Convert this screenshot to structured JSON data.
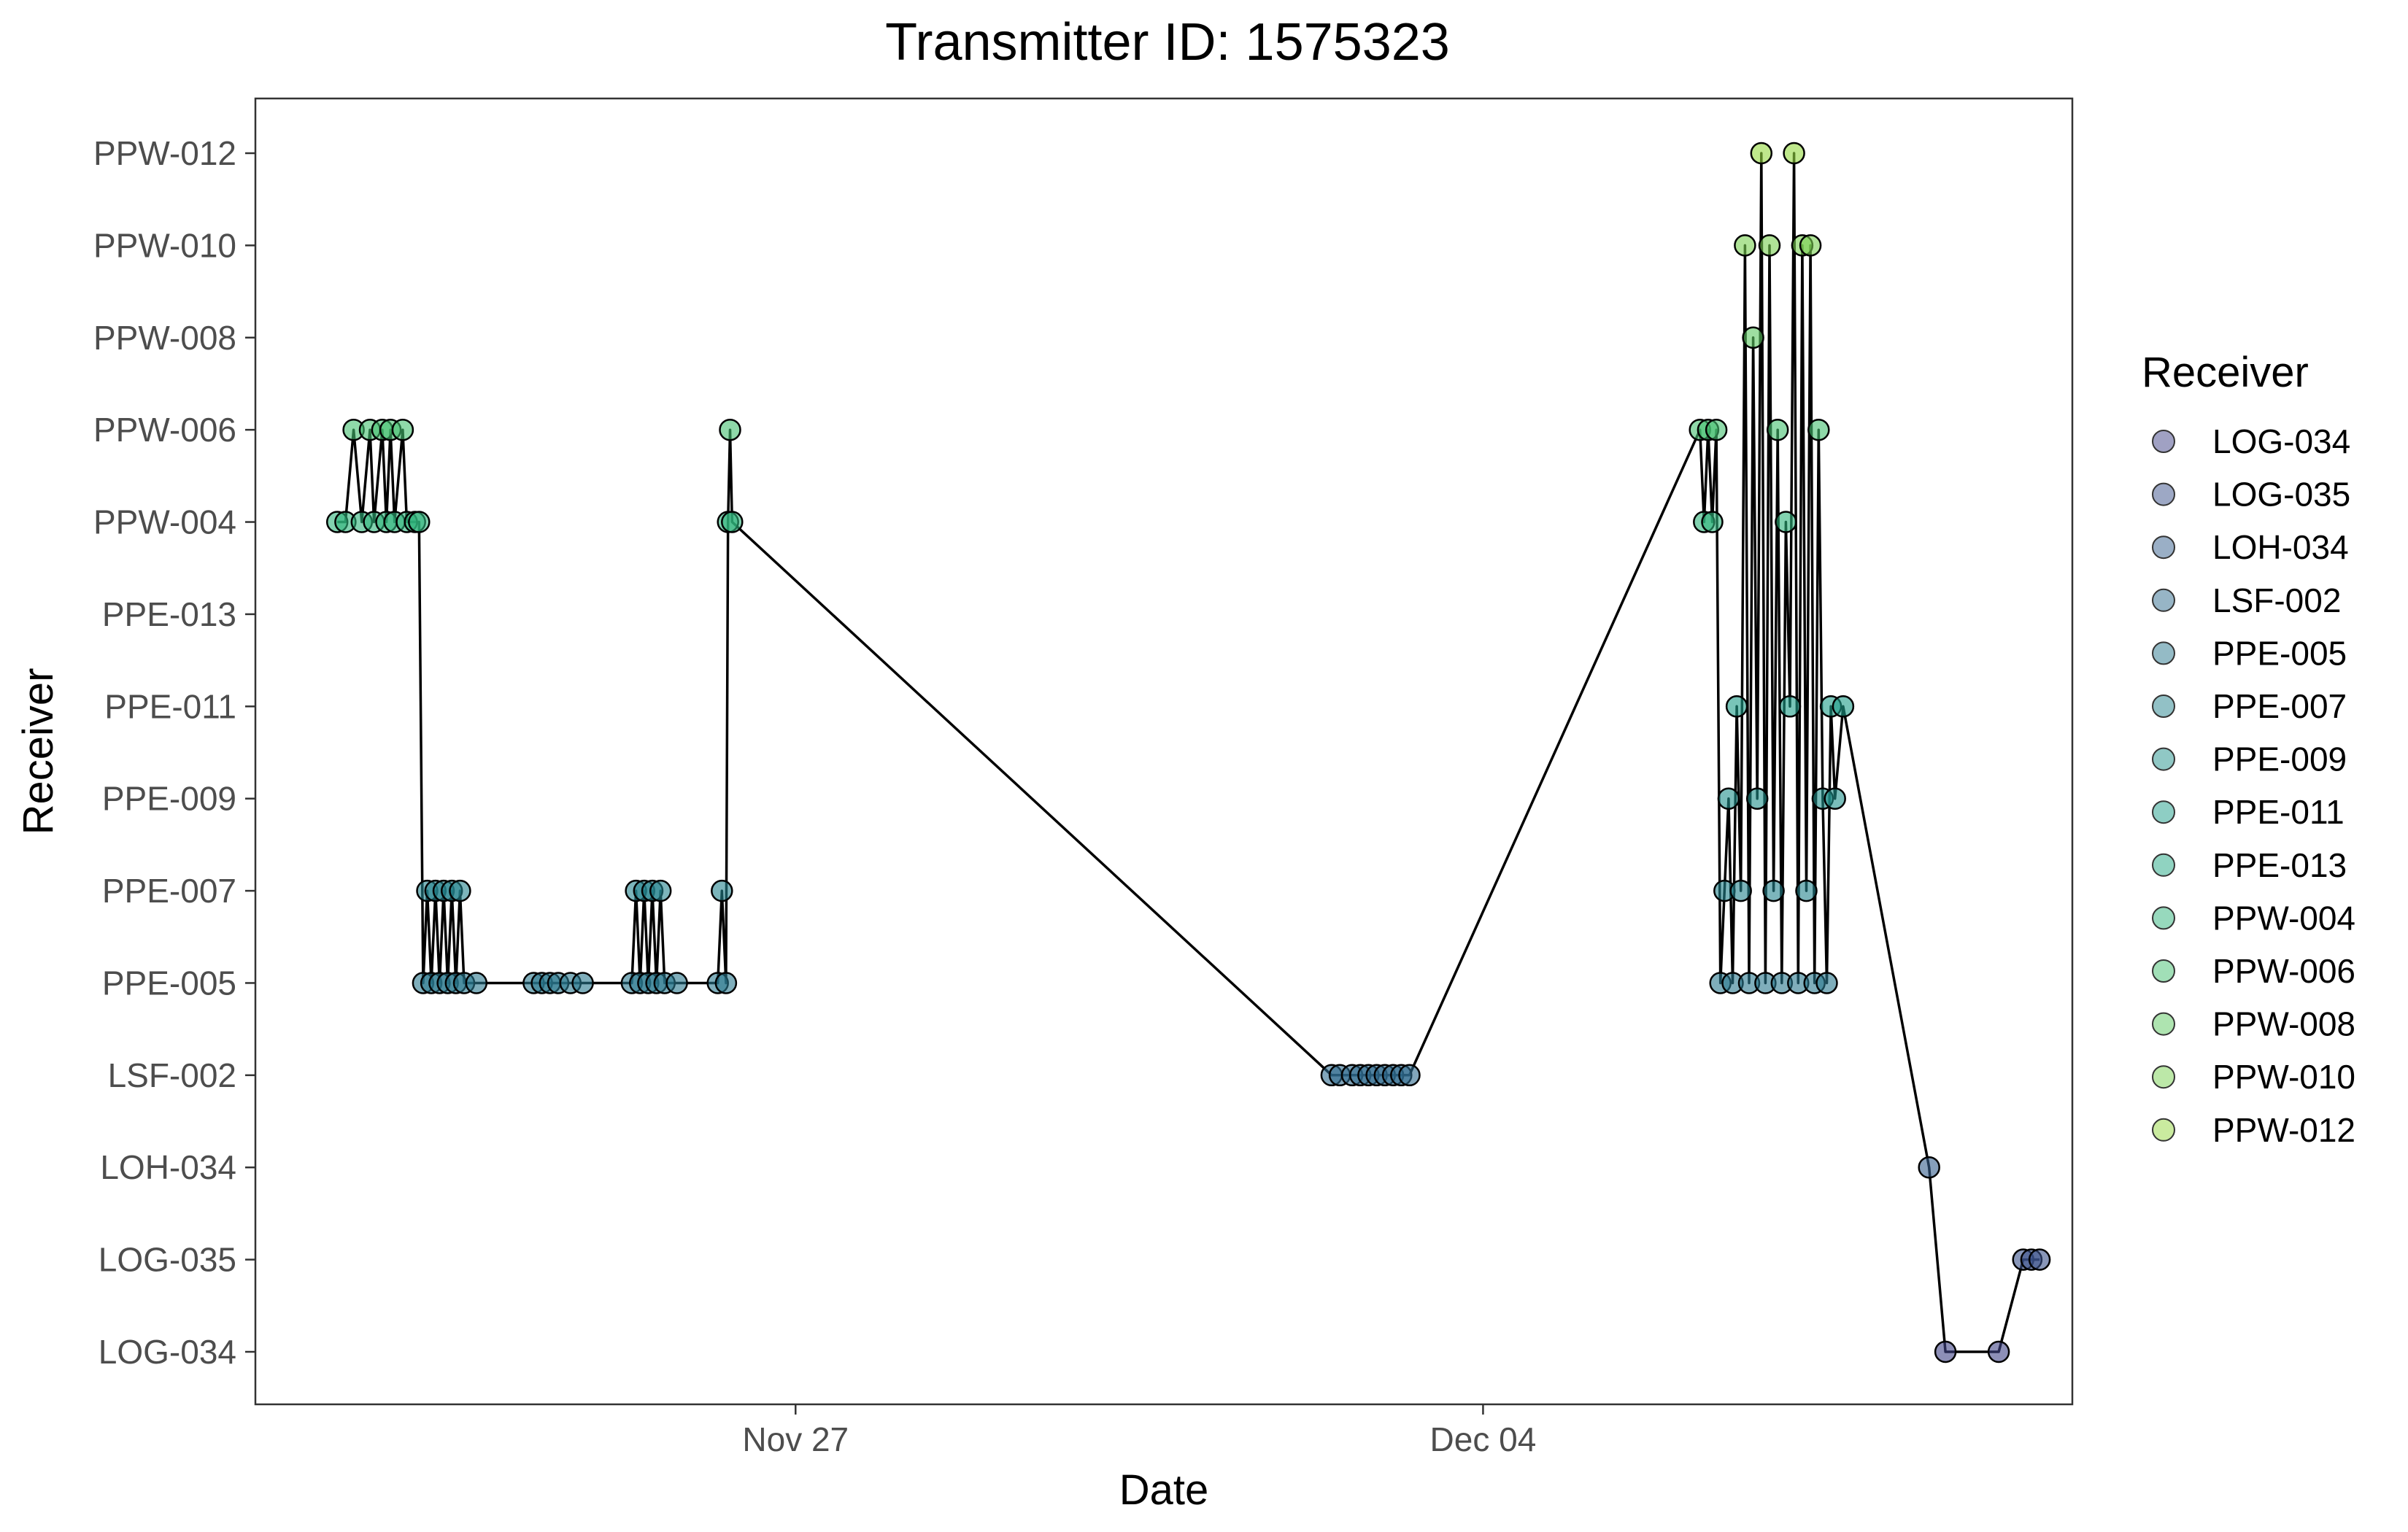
{
  "chart_data": {
    "type": "scatter",
    "title": "Transmitter ID: 1575323",
    "xlabel": "Date",
    "ylabel": "Receiver",
    "x_ticks": [
      {
        "label": "Nov 27",
        "date": "2020-11-27"
      },
      {
        "label": "Dec 04",
        "date": "2020-12-04"
      }
    ],
    "xlim": [
      "2020-11-21T12:00",
      "2020-12-10T00:00"
    ],
    "categories": [
      "LOG-034",
      "LOG-035",
      "LOH-034",
      "LSF-002",
      "PPE-005",
      "PPE-007",
      "PPE-009",
      "PPE-011",
      "PPE-013",
      "PPW-004",
      "PPW-006",
      "PPW-008",
      "PPW-010",
      "PPW-012"
    ],
    "legend": {
      "title": "Receiver",
      "position": "right",
      "entries": [
        "LOG-034",
        "LOG-035",
        "LOH-034",
        "LSF-002",
        "PPE-005",
        "PPE-007",
        "PPE-009",
        "PPE-011",
        "PPE-013",
        "PPW-004",
        "PPW-006",
        "PPW-008",
        "PPW-010",
        "PPW-012"
      ]
    },
    "colors": {
      "LOG-034": "#414487",
      "LOG-035": "#3b528b",
      "LOH-034": "#355f8d",
      "LSF-002": "#2f6b8e",
      "PPE-005": "#2a788e",
      "PPE-007": "#25848e",
      "PPE-009": "#21918c",
      "PPE-011": "#1e9d89",
      "PPE-013": "#22a884",
      "PPW-004": "#2fb47c",
      "PPW-006": "#44bf70",
      "PPW-008": "#5ec962",
      "PPW-010": "#7ad151",
      "PPW-012": "#95d840"
    },
    "grid": false,
    "panel_border": true,
    "connected_line": true,
    "series": [
      {
        "x": "2020-11-22T08:00",
        "y": "PPW-004"
      },
      {
        "x": "2020-11-22T10:00",
        "y": "PPW-004"
      },
      {
        "x": "2020-11-22T12:00",
        "y": "PPW-006"
      },
      {
        "x": "2020-11-22T14:00",
        "y": "PPW-004"
      },
      {
        "x": "2020-11-22T16:00",
        "y": "PPW-006"
      },
      {
        "x": "2020-11-22T17:00",
        "y": "PPW-004"
      },
      {
        "x": "2020-11-22T19:00",
        "y": "PPW-006"
      },
      {
        "x": "2020-11-22T20:00",
        "y": "PPW-004"
      },
      {
        "x": "2020-11-22T21:00",
        "y": "PPW-006"
      },
      {
        "x": "2020-11-22T22:00",
        "y": "PPW-004"
      },
      {
        "x": "2020-11-23T00:00",
        "y": "PPW-006"
      },
      {
        "x": "2020-11-23T01:00",
        "y": "PPW-004"
      },
      {
        "x": "2020-11-23T03:00",
        "y": "PPW-004"
      },
      {
        "x": "2020-11-23T04:00",
        "y": "PPW-004"
      },
      {
        "x": "2020-11-23T05:00",
        "y": "PPE-005"
      },
      {
        "x": "2020-11-23T06:00",
        "y": "PPE-007"
      },
      {
        "x": "2020-11-23T07:00",
        "y": "PPE-005"
      },
      {
        "x": "2020-11-23T08:00",
        "y": "PPE-007"
      },
      {
        "x": "2020-11-23T09:00",
        "y": "PPE-005"
      },
      {
        "x": "2020-11-23T10:00",
        "y": "PPE-007"
      },
      {
        "x": "2020-11-23T11:00",
        "y": "PPE-005"
      },
      {
        "x": "2020-11-23T12:00",
        "y": "PPE-007"
      },
      {
        "x": "2020-11-23T13:00",
        "y": "PPE-005"
      },
      {
        "x": "2020-11-23T14:00",
        "y": "PPE-007"
      },
      {
        "x": "2020-11-23T15:00",
        "y": "PPE-005"
      },
      {
        "x": "2020-11-23T18:00",
        "y": "PPE-005"
      },
      {
        "x": "2020-11-24T08:00",
        "y": "PPE-005"
      },
      {
        "x": "2020-11-24T10:00",
        "y": "PPE-005"
      },
      {
        "x": "2020-11-24T12:00",
        "y": "PPE-005"
      },
      {
        "x": "2020-11-24T14:00",
        "y": "PPE-005"
      },
      {
        "x": "2020-11-24T17:00",
        "y": "PPE-005"
      },
      {
        "x": "2020-11-24T20:00",
        "y": "PPE-005"
      },
      {
        "x": "2020-11-25T08:00",
        "y": "PPE-005"
      },
      {
        "x": "2020-11-25T09:00",
        "y": "PPE-007"
      },
      {
        "x": "2020-11-25T10:00",
        "y": "PPE-005"
      },
      {
        "x": "2020-11-25T11:00",
        "y": "PPE-007"
      },
      {
        "x": "2020-11-25T12:00",
        "y": "PPE-005"
      },
      {
        "x": "2020-11-25T13:00",
        "y": "PPE-007"
      },
      {
        "x": "2020-11-25T14:00",
        "y": "PPE-005"
      },
      {
        "x": "2020-11-25T15:00",
        "y": "PPE-007"
      },
      {
        "x": "2020-11-25T16:00",
        "y": "PPE-005"
      },
      {
        "x": "2020-11-25T19:00",
        "y": "PPE-005"
      },
      {
        "x": "2020-11-26T05:00",
        "y": "PPE-005"
      },
      {
        "x": "2020-11-26T06:00",
        "y": "PPE-007"
      },
      {
        "x": "2020-11-26T07:00",
        "y": "PPE-005"
      },
      {
        "x": "2020-11-26T07:30",
        "y": "PPW-004"
      },
      {
        "x": "2020-11-26T08:00",
        "y": "PPW-006"
      },
      {
        "x": "2020-11-26T08:30",
        "y": "PPW-004"
      },
      {
        "x": "2020-12-02T11:00",
        "y": "LSF-002"
      },
      {
        "x": "2020-12-02T13:00",
        "y": "LSF-002"
      },
      {
        "x": "2020-12-02T16:00",
        "y": "LSF-002"
      },
      {
        "x": "2020-12-02T18:00",
        "y": "LSF-002"
      },
      {
        "x": "2020-12-02T20:00",
        "y": "LSF-002"
      },
      {
        "x": "2020-12-02T22:00",
        "y": "LSF-002"
      },
      {
        "x": "2020-12-03T00:00",
        "y": "LSF-002"
      },
      {
        "x": "2020-12-03T02:00",
        "y": "LSF-002"
      },
      {
        "x": "2020-12-03T04:00",
        "y": "LSF-002"
      },
      {
        "x": "2020-12-03T06:00",
        "y": "LSF-002"
      },
      {
        "x": "2020-12-06T05:00",
        "y": "PPW-006"
      },
      {
        "x": "2020-12-06T06:00",
        "y": "PPW-004"
      },
      {
        "x": "2020-12-06T07:00",
        "y": "PPW-006"
      },
      {
        "x": "2020-12-06T08:00",
        "y": "PPW-004"
      },
      {
        "x": "2020-12-06T09:00",
        "y": "PPW-006"
      },
      {
        "x": "2020-12-06T10:00",
        "y": "PPE-005"
      },
      {
        "x": "2020-12-06T11:00",
        "y": "PPE-007"
      },
      {
        "x": "2020-12-06T12:00",
        "y": "PPE-009"
      },
      {
        "x": "2020-12-06T13:00",
        "y": "PPE-005"
      },
      {
        "x": "2020-12-06T14:00",
        "y": "PPE-011"
      },
      {
        "x": "2020-12-06T15:00",
        "y": "PPE-007"
      },
      {
        "x": "2020-12-06T16:00",
        "y": "PPW-010"
      },
      {
        "x": "2020-12-06T17:00",
        "y": "PPE-005"
      },
      {
        "x": "2020-12-06T18:00",
        "y": "PPW-008"
      },
      {
        "x": "2020-12-06T19:00",
        "y": "PPE-009"
      },
      {
        "x": "2020-12-06T20:00",
        "y": "PPW-012"
      },
      {
        "x": "2020-12-06T21:00",
        "y": "PPE-005"
      },
      {
        "x": "2020-12-06T22:00",
        "y": "PPW-010"
      },
      {
        "x": "2020-12-06T23:00",
        "y": "PPE-007"
      },
      {
        "x": "2020-12-07T00:00",
        "y": "PPW-006"
      },
      {
        "x": "2020-12-07T01:00",
        "y": "PPE-005"
      },
      {
        "x": "2020-12-07T02:00",
        "y": "PPW-004"
      },
      {
        "x": "2020-12-07T03:00",
        "y": "PPE-011"
      },
      {
        "x": "2020-12-07T04:00",
        "y": "PPW-012"
      },
      {
        "x": "2020-12-07T05:00",
        "y": "PPE-005"
      },
      {
        "x": "2020-12-07T06:00",
        "y": "PPW-010"
      },
      {
        "x": "2020-12-07T07:00",
        "y": "PPE-007"
      },
      {
        "x": "2020-12-07T08:00",
        "y": "PPW-010"
      },
      {
        "x": "2020-12-07T09:00",
        "y": "PPE-005"
      },
      {
        "x": "2020-12-07T10:00",
        "y": "PPW-006"
      },
      {
        "x": "2020-12-07T11:00",
        "y": "PPE-009"
      },
      {
        "x": "2020-12-07T12:00",
        "y": "PPE-005"
      },
      {
        "x": "2020-12-07T13:00",
        "y": "PPE-011"
      },
      {
        "x": "2020-12-07T14:00",
        "y": "PPE-009"
      },
      {
        "x": "2020-12-07T16:00",
        "y": "PPE-011"
      },
      {
        "x": "2020-12-08T13:00",
        "y": "LOH-034"
      },
      {
        "x": "2020-12-08T17:00",
        "y": "LOG-034"
      },
      {
        "x": "2020-12-09T06:00",
        "y": "LOG-034"
      },
      {
        "x": "2020-12-09T12:00",
        "y": "LOG-035"
      },
      {
        "x": "2020-12-09T14:00",
        "y": "LOG-035"
      },
      {
        "x": "2020-12-09T16:00",
        "y": "LOG-035"
      }
    ]
  }
}
